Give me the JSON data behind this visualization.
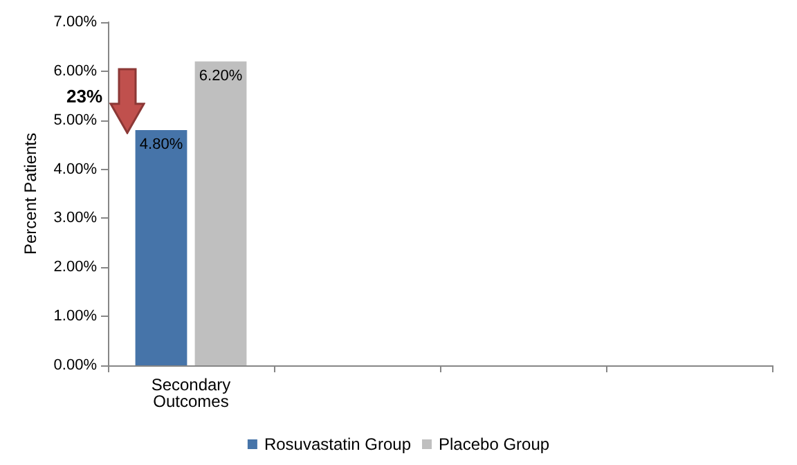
{
  "chart_data": {
    "type": "bar",
    "ylabel": "Percent Patients",
    "categories": [
      "Secondary Outcomes",
      null,
      null,
      null
    ],
    "series": [
      {
        "name": "Rosuvastatin Group",
        "color": "#4674a9",
        "values": [
          4.8,
          null,
          null,
          null
        ],
        "value_labels": [
          "4.80%",
          null,
          null,
          null
        ]
      },
      {
        "name": "Placebo Group",
        "color": "#bfbfbf",
        "values": [
          6.2,
          null,
          null,
          null
        ],
        "value_labels": [
          "6.20%",
          null,
          null,
          null
        ]
      }
    ],
    "ylim": [
      0,
      7
    ],
    "yticks": [
      {
        "value": 0,
        "label": "0.00%"
      },
      {
        "value": 1,
        "label": "1.00%"
      },
      {
        "value": 2,
        "label": "2.00%"
      },
      {
        "value": 3,
        "label": "3.00%"
      },
      {
        "value": 4,
        "label": "4.00%"
      },
      {
        "value": 5,
        "label": "5.00%"
      },
      {
        "value": 6,
        "label": "6.00%"
      },
      {
        "value": 7,
        "label": "7.00%"
      }
    ],
    "annotations": [
      "23%"
    ],
    "legend": "bottom"
  }
}
